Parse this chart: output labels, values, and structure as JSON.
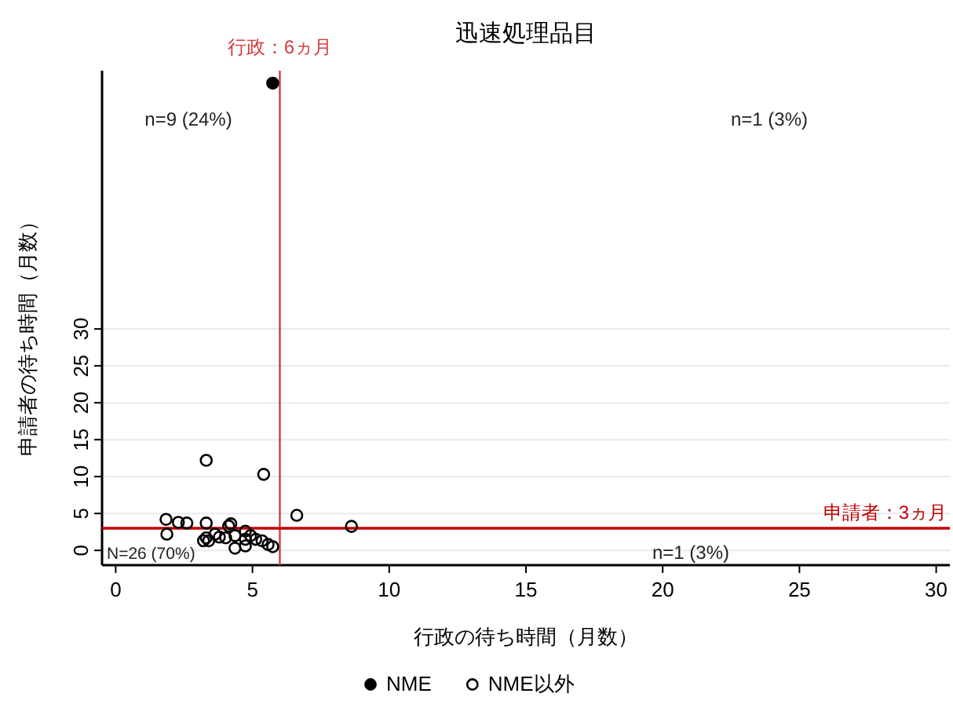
{
  "chart_data": {
    "type": "scatter",
    "title": "迅速処理品目",
    "xlabel": "行政の待ち時間（月数）",
    "ylabel": "申請者の待ち時間（月数）",
    "xlim": [
      -0.5,
      30.5
    ],
    "ylim": [
      -2,
      65
    ],
    "xticks": [
      0,
      5,
      10,
      15,
      20,
      25,
      30
    ],
    "yticks": [
      0,
      5,
      10,
      15,
      20,
      25,
      30
    ],
    "grid": "y",
    "legend": "bottom",
    "marker": "circle",
    "series": [
      {
        "name": "NME",
        "color": "#000000",
        "x": [
          5.74
        ],
        "values": [
          63.3
        ]
      },
      {
        "name": "NME以外",
        "color": "#000000",
        "x": [
          3.31,
          5.41,
          1.84,
          1.87,
          2.29,
          2.6,
          3.31,
          4.21,
          4.13,
          6.62,
          8.62,
          3.21,
          3.4,
          3.31,
          3.79,
          3.63,
          4.02,
          4.36,
          4.74,
          4.74,
          4.36,
          4.74,
          5.12,
          5.35,
          5.57,
          5.74,
          4.93
        ],
        "values": [
          12.2,
          10.3,
          4.2,
          2.2,
          3.8,
          3.7,
          3.7,
          3.6,
          3.3,
          4.75,
          3.25,
          1.3,
          1.3,
          1.7,
          1.8,
          2.2,
          1.7,
          2.0,
          2.6,
          1.5,
          0.3,
          0.6,
          1.5,
          1.3,
          0.8,
          0.5,
          2.0
        ]
      }
    ],
    "ref_lines": [
      {
        "axis": "x",
        "value": 6,
        "label": "行政：6ヵ月",
        "color": "#d23c3c"
      },
      {
        "axis": "y",
        "value": 3,
        "label": "申請者：3ヵ月",
        "color": "#c00000"
      }
    ],
    "annotations": [
      "n=9 (24%)",
      "n=1 (3%)",
      "N=26 (70%)",
      "n=1 (3%)"
    ]
  }
}
